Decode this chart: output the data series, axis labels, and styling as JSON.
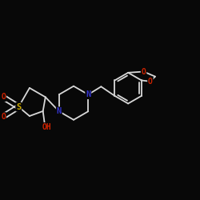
{
  "background_color": "#080808",
  "bond_color": "#d8d8d8",
  "atom_colors": {
    "N": "#3333cc",
    "O": "#cc2200",
    "S": "#ccaa00",
    "C": "#d8d8d8"
  },
  "figsize": [
    2.5,
    2.5
  ],
  "dpi": 100
}
